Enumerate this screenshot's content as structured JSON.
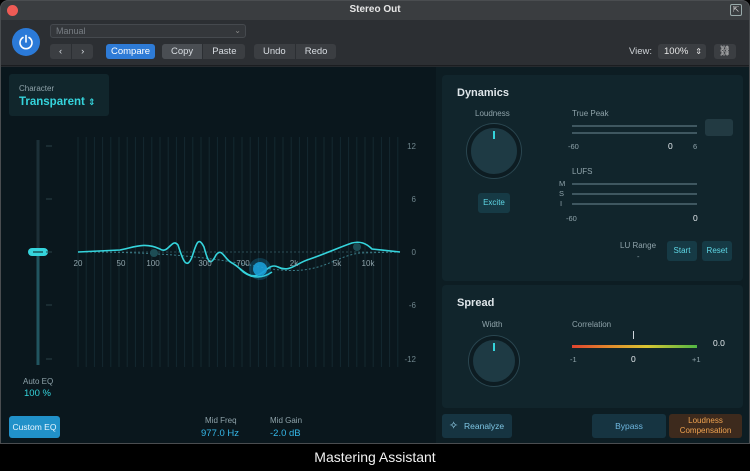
{
  "window": {
    "title": "Stereo Out"
  },
  "toolbar": {
    "preset": "Manual",
    "back": "‹",
    "forward": "›",
    "compare": "Compare",
    "copy": "Copy",
    "paste": "Paste",
    "undo": "Undo",
    "redo": "Redo",
    "view_label": "View:",
    "view_value": "100%"
  },
  "eq": {
    "character_label": "Character",
    "character_value": "Transparent",
    "gain_scale": [
      "12",
      "6",
      "0",
      "-6",
      "-12"
    ],
    "freq_scale": [
      "20",
      "50",
      "100",
      "300",
      "700",
      "2k",
      "5k",
      "10k"
    ],
    "auto_eq_label": "Auto EQ",
    "auto_eq_value": "100 %",
    "custom_eq": "Custom EQ",
    "mid_freq_label": "Mid Freq",
    "mid_freq_value": "977.0 Hz",
    "mid_gain_label": "Mid Gain",
    "mid_gain_value": "-2.0 dB"
  },
  "dynamics": {
    "title": "Dynamics",
    "loudness_label": "Loudness",
    "excite": "Excite",
    "true_peak_label": "True Peak",
    "true_peak_scale": [
      "-60",
      "0",
      "6"
    ],
    "lufs_label": "LUFS",
    "lufs_channels": [
      "M",
      "S",
      "I"
    ],
    "lufs_scale": [
      "-60",
      "0"
    ],
    "lu_range_label": "LU Range",
    "lu_range_value": "-",
    "start": "Start",
    "reset": "Reset"
  },
  "spread": {
    "title": "Spread",
    "width_label": "Width",
    "correlation_label": "Correlation",
    "correlation_scale": [
      "-1",
      "0",
      "+1"
    ],
    "correlation_value": "0.0"
  },
  "footer": {
    "reanalyze": "Reanalyze",
    "bypass": "Bypass",
    "loudness_comp_line1": "Loudness",
    "loudness_comp_line2": "Compensation"
  },
  "caption": "Mastering Assistant",
  "colors": {
    "accent": "#35d4dc",
    "power": "#2b7ad8",
    "loudness_comp": "#f0a350"
  }
}
